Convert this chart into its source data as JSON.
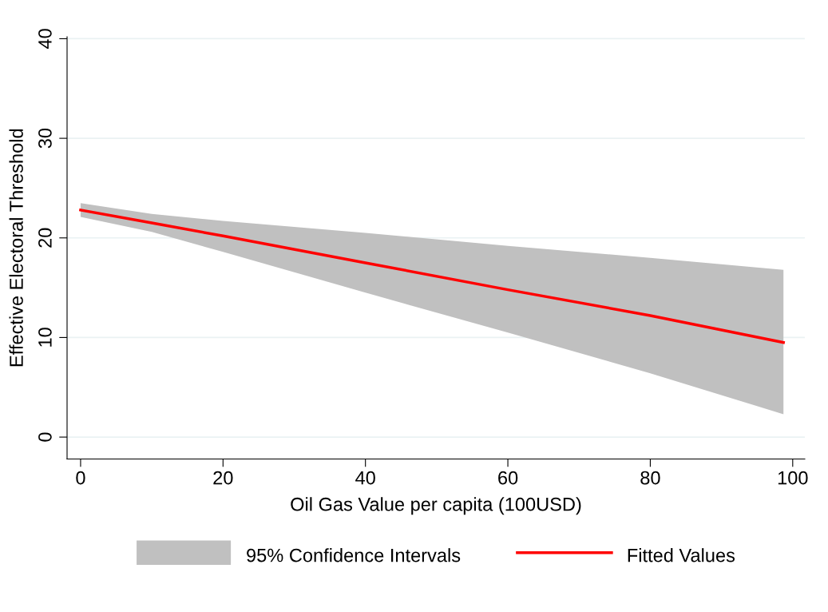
{
  "chart_data": {
    "type": "line",
    "xlabel": "Oil Gas Value per capita (100USD)",
    "ylabel": "Effective Electoral Threshold",
    "x": [
      0,
      10,
      20,
      40,
      60,
      80,
      98.7
    ],
    "series": [
      {
        "name": "Fitted Values",
        "color": "#ff0000",
        "values": [
          22.8,
          21.5,
          20.2,
          17.5,
          14.8,
          12.2,
          9.5
        ],
        "lower": [
          22.1,
          20.6,
          18.6,
          14.5,
          10.5,
          6.4,
          2.3
        ],
        "upper": [
          23.5,
          22.4,
          21.7,
          20.5,
          19.2,
          18.0,
          16.8
        ]
      }
    ],
    "annotations": [
      "95% Confidence Intervals"
    ],
    "xlim": [
      -1.9,
      101.7
    ],
    "xticks": [
      0,
      20,
      40,
      60,
      80,
      100
    ],
    "ylim": [
      -2.2,
      40.2
    ],
    "yticks": [
      0,
      10,
      20,
      30,
      40
    ],
    "grid": "y",
    "legend": "bottom",
    "line_style": "solid",
    "marker": "none"
  }
}
